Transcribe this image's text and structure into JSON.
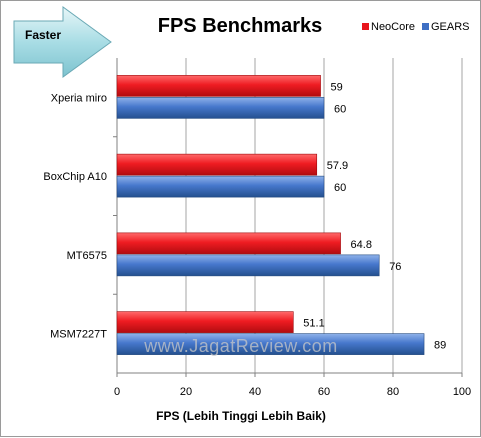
{
  "chart_data": {
    "type": "bar",
    "orientation": "horizontal",
    "title": "FPS Benchmarks",
    "xlabel": "FPS (Lebih Tinggi Lebih Baik)",
    "ylabel": "",
    "categories": [
      "Xperia miro",
      "BoxChip A10",
      "MT6575",
      "MSM7227T"
    ],
    "series": [
      {
        "name": "NeoCore",
        "color": "#e8151c",
        "values": [
          59,
          57.9,
          64.8,
          51.1
        ]
      },
      {
        "name": "GEARS",
        "color": "#3e6fc4",
        "values": [
          60,
          60,
          76,
          89
        ]
      }
    ],
    "value_labels": {
      "NeoCore": [
        "59",
        "57.9",
        "64.8",
        "51.1"
      ],
      "GEARS": [
        "60",
        "60",
        "76",
        "89"
      ]
    },
    "xlim": [
      0,
      100
    ],
    "xticks": [
      0,
      20,
      40,
      60,
      80,
      100
    ],
    "grid": "vertical",
    "legend_position": "top-right"
  },
  "annotation": {
    "arrow_label": "Faster",
    "arrow_direction": "right"
  },
  "watermark": "www.JagatReview.com"
}
